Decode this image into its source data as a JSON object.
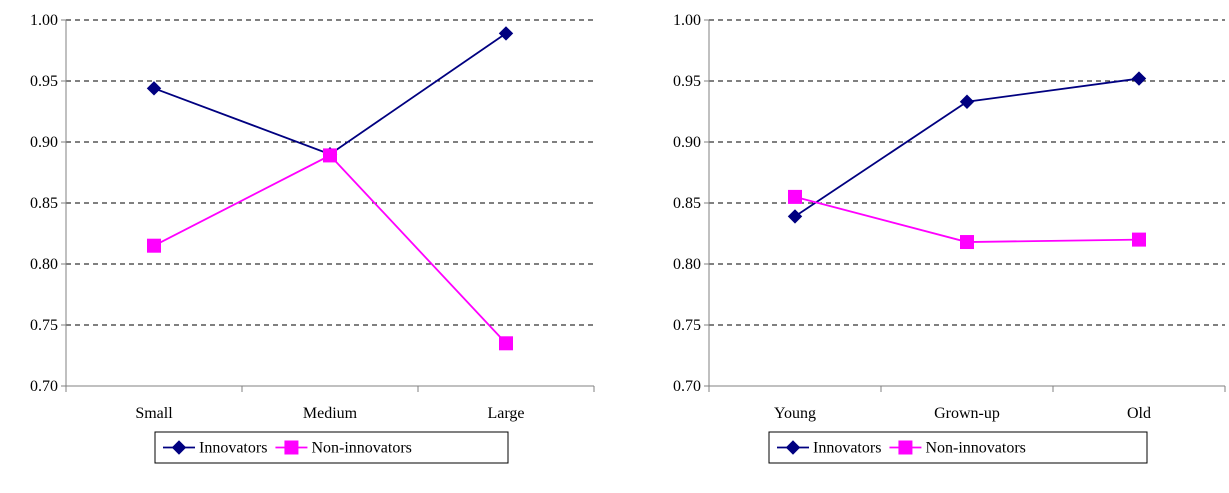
{
  "colors": {
    "innovators": "#000080",
    "non_innovators": "#FF00FF",
    "grid": "#000000",
    "axis": "#808080"
  },
  "chart_data": [
    {
      "type": "line",
      "categories": [
        "Small",
        "Medium",
        "Large"
      ],
      "series": [
        {
          "name": "Innovators",
          "marker": "diamond",
          "values": [
            0.944,
            0.89,
            0.989
          ]
        },
        {
          "name": "Non-innovators",
          "marker": "square",
          "values": [
            0.815,
            0.889,
            0.735
          ]
        }
      ],
      "ylim": [
        0.7,
        1.0
      ],
      "yticks": [
        "0.70",
        "0.75",
        "0.80",
        "0.85",
        "0.90",
        "0.95",
        "1.00"
      ],
      "grid": "dashed horizontal",
      "legend": "bottom"
    },
    {
      "type": "line",
      "categories": [
        "Young",
        "Grown-up",
        "Old"
      ],
      "series": [
        {
          "name": "Innovators",
          "marker": "diamond",
          "values": [
            0.839,
            0.933,
            0.952
          ]
        },
        {
          "name": "Non-innovators",
          "marker": "square",
          "values": [
            0.855,
            0.818,
            0.82
          ]
        }
      ],
      "ylim": [
        0.7,
        1.0
      ],
      "yticks": [
        "0.70",
        "0.75",
        "0.80",
        "0.85",
        "0.90",
        "0.95",
        "1.00"
      ],
      "grid": "dashed horizontal",
      "legend": "bottom"
    }
  ]
}
